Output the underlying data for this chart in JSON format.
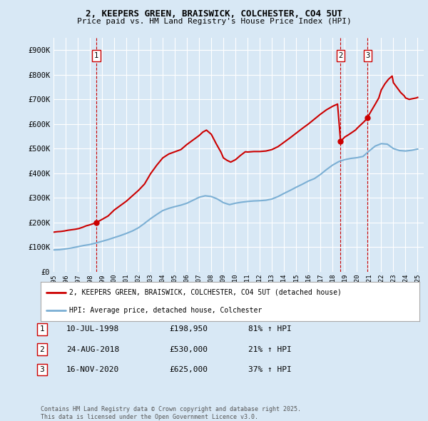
{
  "title_line1": "2, KEEPERS GREEN, BRAISWICK, COLCHESTER, CO4 5UT",
  "title_line2": "Price paid vs. HM Land Registry's House Price Index (HPI)",
  "background_color": "#d8e8f5",
  "plot_bg_color": "#d8e8f5",
  "grid_color": "#ffffff",
  "red_line_color": "#cc0000",
  "blue_line_color": "#7bafd4",
  "ylim": [
    0,
    950000
  ],
  "yticks": [
    0,
    100000,
    200000,
    300000,
    400000,
    500000,
    600000,
    700000,
    800000,
    900000
  ],
  "ytick_labels": [
    "£0",
    "£100K",
    "£200K",
    "£300K",
    "£400K",
    "£500K",
    "£600K",
    "£700K",
    "£800K",
    "£900K"
  ],
  "transaction_dates": [
    1998.53,
    2018.65,
    2020.88
  ],
  "transaction_prices": [
    198950,
    530000,
    625000
  ],
  "transaction_labels": [
    "1",
    "2",
    "3"
  ],
  "sale1_date": "10-JUL-1998",
  "sale1_price": "£198,950",
  "sale1_hpi": "81% ↑ HPI",
  "sale2_date": "24-AUG-2018",
  "sale2_price": "£530,000",
  "sale2_hpi": "21% ↑ HPI",
  "sale3_date": "16-NOV-2020",
  "sale3_price": "£625,000",
  "sale3_hpi": "37% ↑ HPI",
  "legend_line1": "2, KEEPERS GREEN, BRAISWICK, COLCHESTER, CO4 5UT (detached house)",
  "legend_line2": "HPI: Average price, detached house, Colchester",
  "footer": "Contains HM Land Registry data © Crown copyright and database right 2025.\nThis data is licensed under the Open Government Licence v3.0."
}
